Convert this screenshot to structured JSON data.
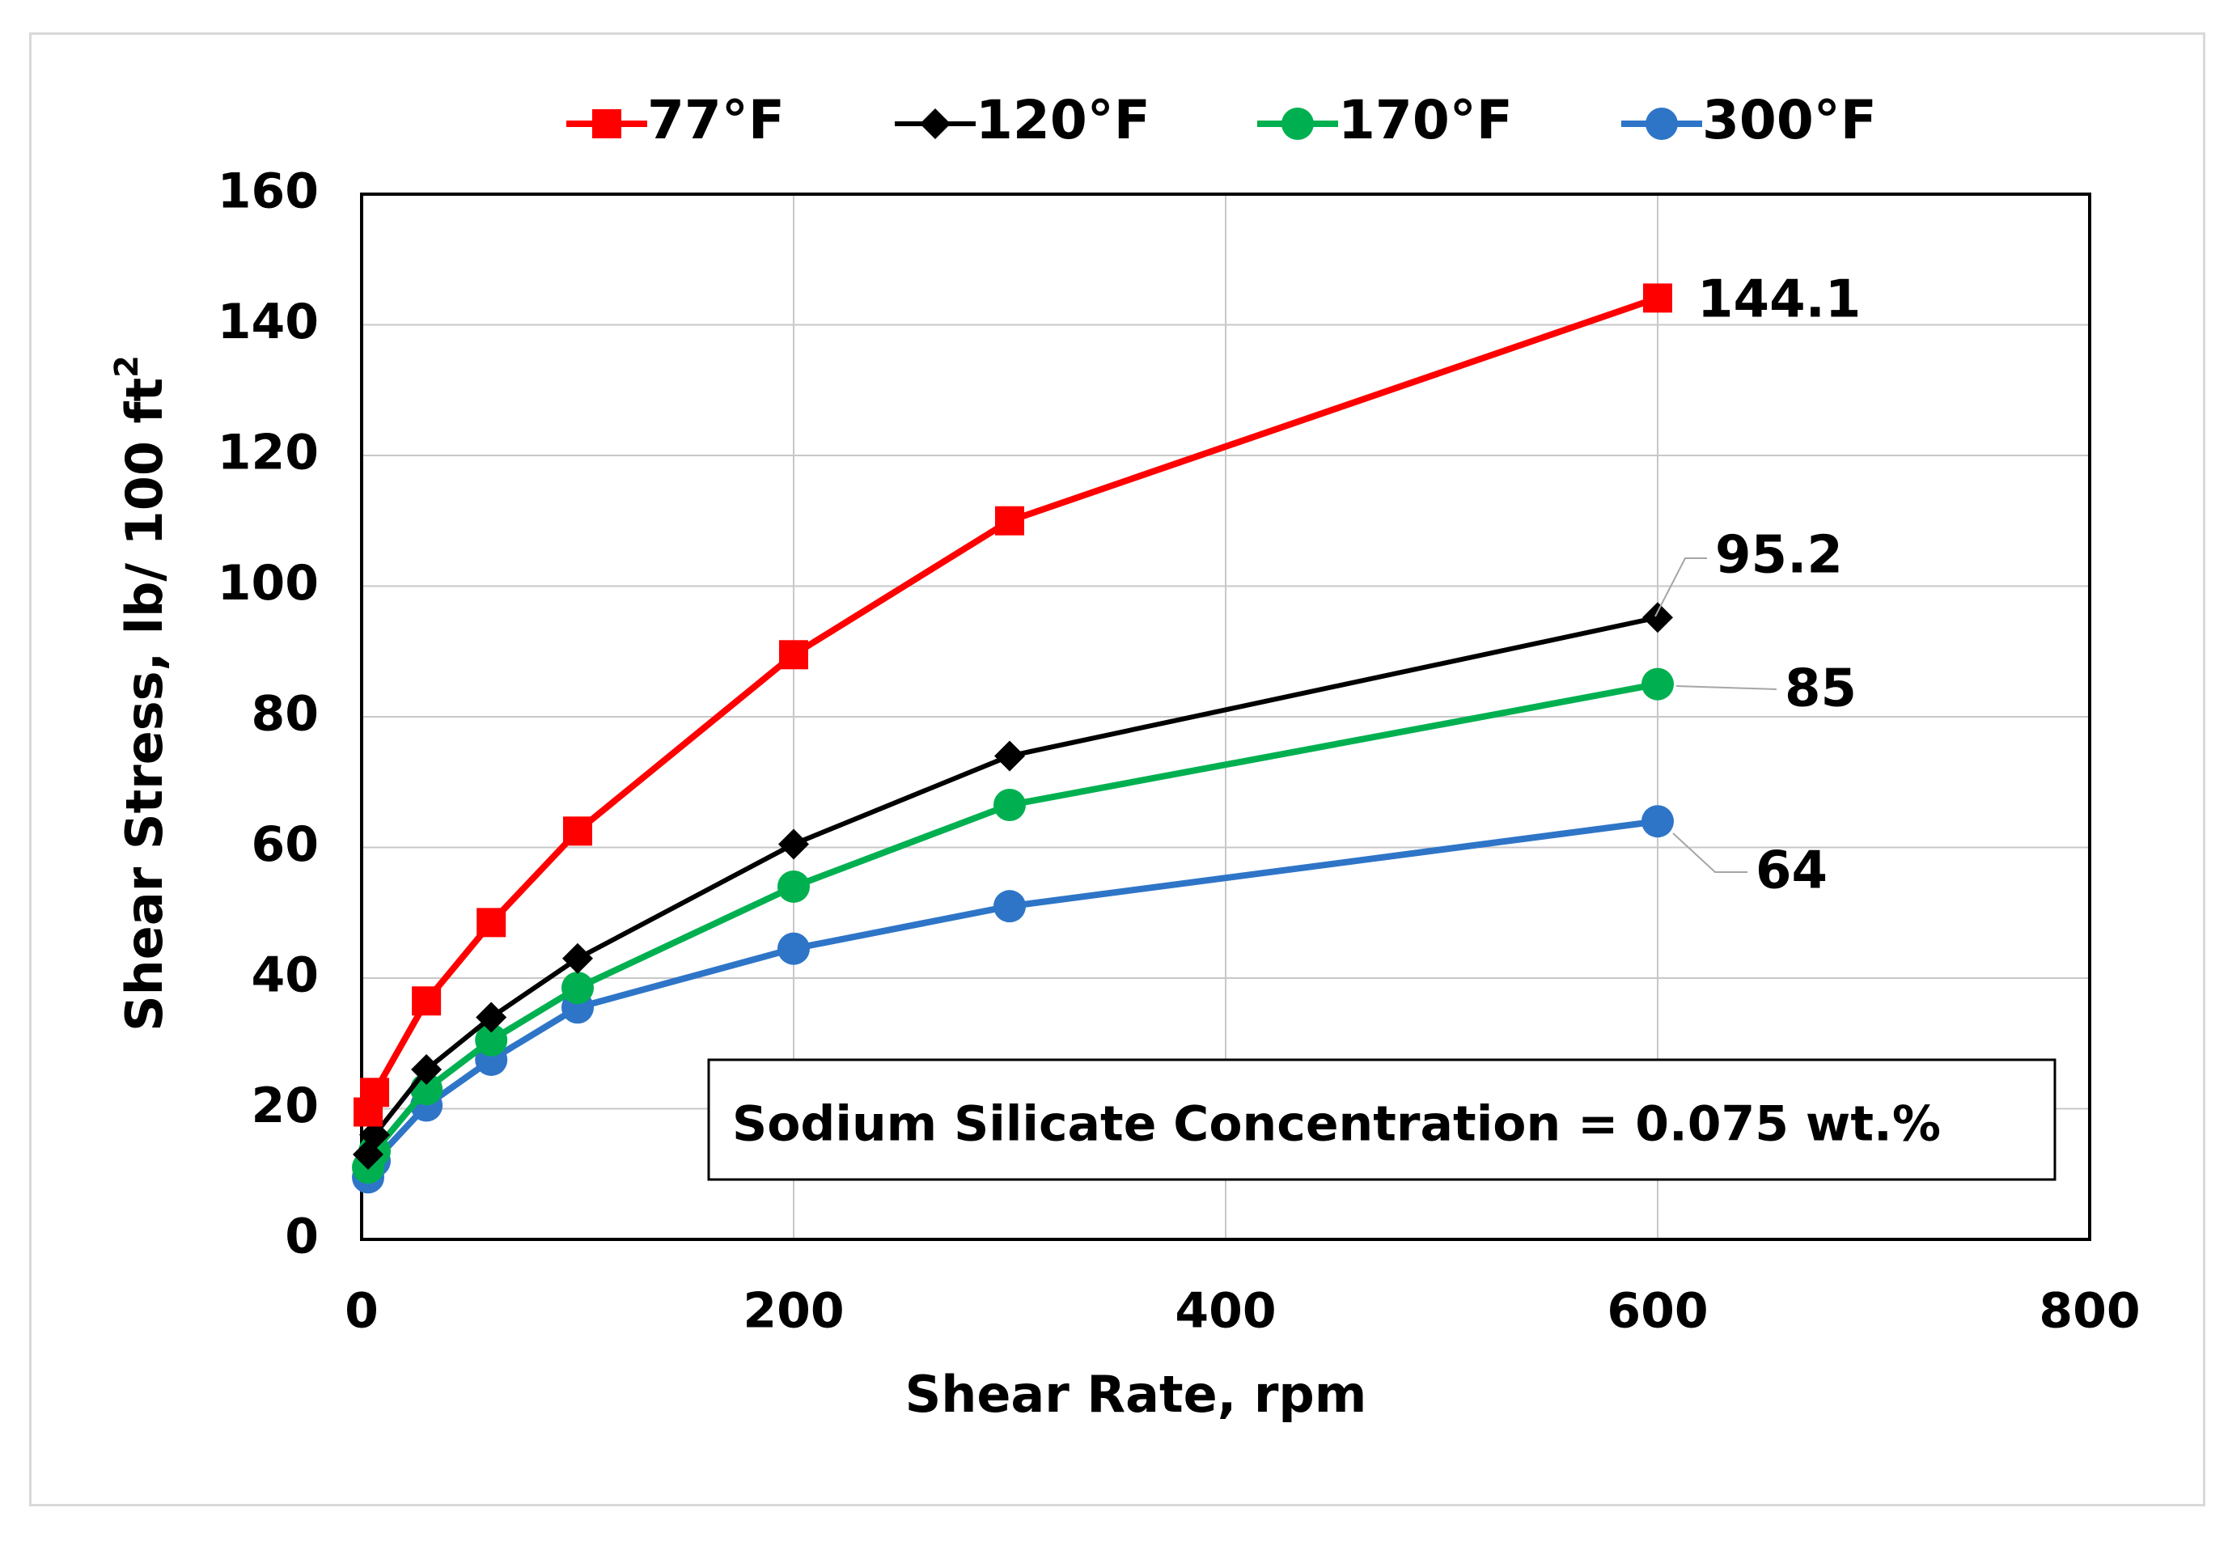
{
  "chart_data": {
    "type": "line",
    "xlabel": "Shear Rate, rpm",
    "ylabel": "Shear Stress, lb/ 100 ft",
    "ylabel_sup": "2",
    "xlim": [
      0,
      800
    ],
    "ylim": [
      0,
      160
    ],
    "xticks": [
      0,
      200,
      400,
      600,
      800
    ],
    "yticks": [
      0,
      20,
      40,
      60,
      80,
      100,
      120,
      140,
      160
    ],
    "grid": true,
    "legend_position": "top",
    "annotation": "Sodium Silicate Concentration = 0.075 wt.%",
    "series": [
      {
        "name": "77°F",
        "color": "#ff0000",
        "marker": "square",
        "x": [
          3,
          6,
          30,
          60,
          100,
          200,
          300,
          600
        ],
        "y": [
          19.5,
          22.5,
          36.5,
          48.5,
          62.5,
          89.5,
          110,
          144.1
        ],
        "end_label": "144.1"
      },
      {
        "name": "120°F",
        "color": "#000000",
        "marker": "diamond",
        "x": [
          3,
          6,
          30,
          60,
          100,
          200,
          300,
          600
        ],
        "y": [
          13,
          16,
          26,
          34,
          43,
          60.5,
          74,
          95.2
        ],
        "end_label": "95.2"
      },
      {
        "name": "170°F",
        "color": "#00b050",
        "marker": "circle",
        "x": [
          3,
          6,
          30,
          60,
          100,
          200,
          300,
          600
        ],
        "y": [
          11,
          13.5,
          23,
          30.5,
          38.5,
          54,
          66.5,
          85
        ],
        "end_label": "85"
      },
      {
        "name": "300°F",
        "color": "#2e75c8",
        "marker": "circle",
        "x": [
          3,
          6,
          30,
          60,
          100,
          200,
          300,
          600
        ],
        "y": [
          9.5,
          12,
          20.5,
          27.5,
          35.5,
          44.5,
          51,
          64
        ],
        "end_label": "64"
      }
    ]
  }
}
